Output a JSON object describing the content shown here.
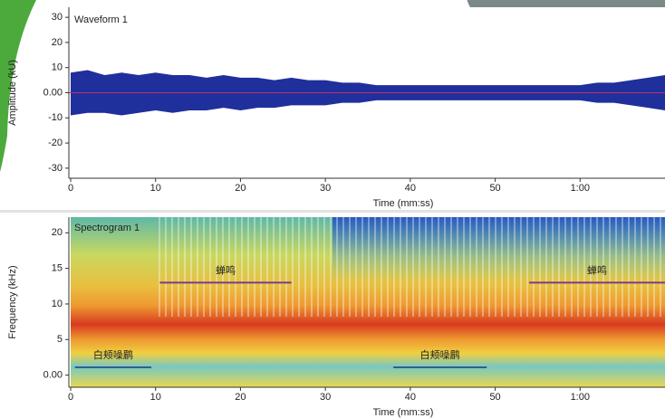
{
  "chart_data": [
    {
      "type": "waveform",
      "title": "Waveform 1",
      "xlabel": "Time (mm:ss)",
      "ylabel": "Amplitude (kU)",
      "color": "#1f2f9c",
      "x": [
        0,
        2,
        4,
        6,
        8,
        10,
        12,
        14,
        16,
        18,
        20,
        22,
        24,
        26,
        28,
        30,
        32,
        34,
        36,
        38,
        40,
        42,
        44,
        46,
        48,
        50,
        52,
        54,
        56,
        58,
        60,
        62,
        64,
        66,
        68,
        70
      ],
      "upper": [
        8,
        9,
        7,
        8,
        7,
        8,
        7,
        7,
        6,
        7,
        6,
        6,
        5,
        6,
        5,
        5,
        4,
        4,
        3,
        3,
        3,
        3,
        3,
        3,
        3,
        3,
        3,
        3,
        3,
        3,
        3,
        4,
        4,
        5,
        6,
        7
      ],
      "lower": [
        -9,
        -8,
        -8,
        -9,
        -8,
        -7,
        -8,
        -7,
        -7,
        -6,
        -7,
        -6,
        -6,
        -5,
        -5,
        -5,
        -4,
        -4,
        -3,
        -3,
        -3,
        -3,
        -3,
        -3,
        -3,
        -3,
        -3,
        -3,
        -3,
        -3,
        -3,
        -4,
        -4,
        -5,
        -6,
        -7
      ],
      "xlim": [
        0,
        70
      ],
      "xticks": [
        0,
        10,
        20,
        30,
        40,
        50,
        {
          "value": 60,
          "label": "1:00"
        }
      ],
      "ylim": [
        -34,
        34
      ],
      "yticks": [
        30,
        20,
        10,
        {
          "value": 0,
          "label": "0.00"
        },
        -10,
        -20,
        -30
      ]
    },
    {
      "type": "spectrogram",
      "title": "Spectrogram 1",
      "xlabel": "Time (mm:ss)",
      "ylabel": "Frequency (kHz)",
      "xlim": [
        0,
        70
      ],
      "xticks": [
        0,
        10,
        20,
        30,
        40,
        50,
        {
          "value": 60,
          "label": "1:00"
        }
      ],
      "ylim": [
        -1.7,
        22.2
      ],
      "yticks": [
        20,
        15,
        10,
        5,
        {
          "value": 0,
          "label": "0.00"
        }
      ],
      "annotations": [
        {
          "label": "蝉鸣",
          "x": [
            10.5,
            26
          ],
          "y": 13,
          "color": "#7a3a8c"
        },
        {
          "label": "蝉鸣",
          "x": [
            54,
            70
          ],
          "y": 13,
          "color": "#7a3a8c"
        },
        {
          "label": "白颊噪鹛",
          "x": [
            0.5,
            9.5
          ],
          "y": 1.1,
          "color": "#2f5f8f"
        },
        {
          "label": "白颊噪鹛",
          "x": [
            38,
            49
          ],
          "y": 1.1,
          "color": "#2f5f8f"
        }
      ]
    }
  ]
}
